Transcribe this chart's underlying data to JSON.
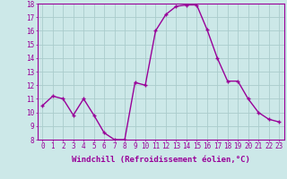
{
  "x": [
    0,
    1,
    2,
    3,
    4,
    5,
    6,
    7,
    8,
    9,
    10,
    11,
    12,
    13,
    14,
    15,
    16,
    17,
    18,
    19,
    20,
    21,
    22,
    23
  ],
  "y": [
    10.5,
    11.2,
    11.0,
    9.8,
    11.0,
    9.8,
    8.5,
    8.0,
    8.0,
    12.2,
    12.0,
    16.0,
    17.2,
    17.8,
    17.9,
    17.9,
    16.1,
    14.0,
    12.3,
    12.3,
    11.0,
    10.0,
    9.5,
    9.3
  ],
  "line_color": "#990099",
  "marker": "+",
  "marker_size": 3,
  "marker_lw": 1.0,
  "xlabel": "Windchill (Refroidissement éolien,°C)",
  "xlabel_fontsize": 6.5,
  "bg_color": "#cce8e8",
  "grid_color": "#aacccc",
  "ylim": [
    8,
    18
  ],
  "xlim": [
    -0.5,
    23.5
  ],
  "yticks": [
    8,
    9,
    10,
    11,
    12,
    13,
    14,
    15,
    16,
    17,
    18
  ],
  "xticks": [
    0,
    1,
    2,
    3,
    4,
    5,
    6,
    7,
    8,
    9,
    10,
    11,
    12,
    13,
    14,
    15,
    16,
    17,
    18,
    19,
    20,
    21,
    22,
    23
  ],
  "tick_fontsize": 5.5,
  "tick_color": "#990099",
  "spine_color": "#990099",
  "line_width": 1.0
}
